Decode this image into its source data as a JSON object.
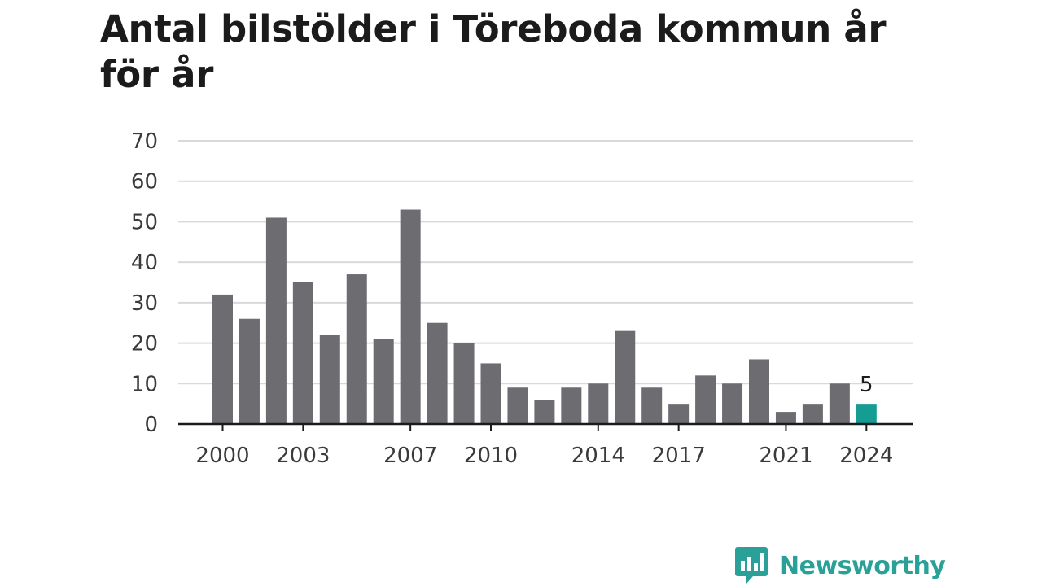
{
  "title": "Antal bilstölder i Töreboda kommun år för år",
  "brand": {
    "name": "Newsworthy",
    "color": "#2aa198",
    "icon": "newsworthy-logo-icon"
  },
  "colors": {
    "bar": "#6d6c71",
    "highlight": "#159d94",
    "grid": "#d9d9d9",
    "axis": "#1b1b1b"
  },
  "chart_data": {
    "type": "bar",
    "title": "Antal bilstölder i Töreboda kommun år för år",
    "xlabel": "",
    "ylabel": "",
    "categories": [
      "2000",
      "2001",
      "2002",
      "2003",
      "2004",
      "2005",
      "2006",
      "2007",
      "2008",
      "2009",
      "2010",
      "2011",
      "2012",
      "2013",
      "2014",
      "2015",
      "2016",
      "2017",
      "2018",
      "2019",
      "2020",
      "2021",
      "2022",
      "2023",
      "2024"
    ],
    "values": [
      32,
      26,
      51,
      35,
      22,
      37,
      21,
      53,
      25,
      20,
      15,
      9,
      6,
      9,
      10,
      23,
      9,
      5,
      12,
      10,
      16,
      3,
      5,
      10,
      5
    ],
    "x_tick_labels": [
      "2000",
      "2003",
      "2007",
      "2010",
      "2014",
      "2017",
      "2021",
      "2024"
    ],
    "y_ticks": [
      0,
      10,
      20,
      30,
      40,
      50,
      60,
      70
    ],
    "ylim": [
      0,
      70
    ],
    "highlight": {
      "category": "2024",
      "label": "5"
    },
    "grid": true,
    "legend": "none"
  }
}
